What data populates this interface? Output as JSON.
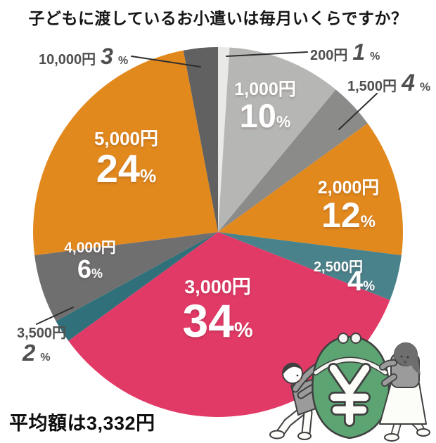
{
  "page": {
    "title": "子どもに渡しているお小遣いは毎月いくらですか？",
    "average_note": "平均額は3,332円"
  },
  "chart_data": {
    "type": "pie",
    "title": "子どもに渡しているお小遣いは毎月いくらですか？",
    "unit": "%",
    "start_angle_deg": 0,
    "direction": "clockwise",
    "slices": [
      {
        "label": "200円",
        "value": 1,
        "color": "#e9e9e7",
        "label_placement": "outside"
      },
      {
        "label": "1,000円",
        "value": 10,
        "color": "#b6b6b4",
        "label_placement": "inside"
      },
      {
        "label": "1,500円",
        "value": 4,
        "color": "#8b8b89",
        "label_placement": "outside"
      },
      {
        "label": "2,000円",
        "value": 12,
        "color": "#e2891e",
        "label_placement": "inside"
      },
      {
        "label": "2,500円",
        "value": 4,
        "color": "#4a828b",
        "label_placement": "inside"
      },
      {
        "label": "3,000円",
        "value": 34,
        "color": "#e23a67",
        "label_placement": "inside"
      },
      {
        "label": "3,500円",
        "value": 2,
        "color": "#30707a",
        "label_placement": "outside"
      },
      {
        "label": "4,000円",
        "value": 6,
        "color": "#6f6f6f",
        "label_placement": "inside"
      },
      {
        "label": "5,000円",
        "value": 24,
        "color": "#e2891e",
        "label_placement": "inside"
      },
      {
        "label": "10,000円",
        "value": 3,
        "color": "#616161",
        "label_placement": "outside"
      }
    ],
    "annotation": "平均額は3,332円"
  },
  "illustration": {
    "symbol": "¥",
    "bag_color": "#5ca573",
    "name": "child-and-woman-carrying-yen-money-bag"
  }
}
